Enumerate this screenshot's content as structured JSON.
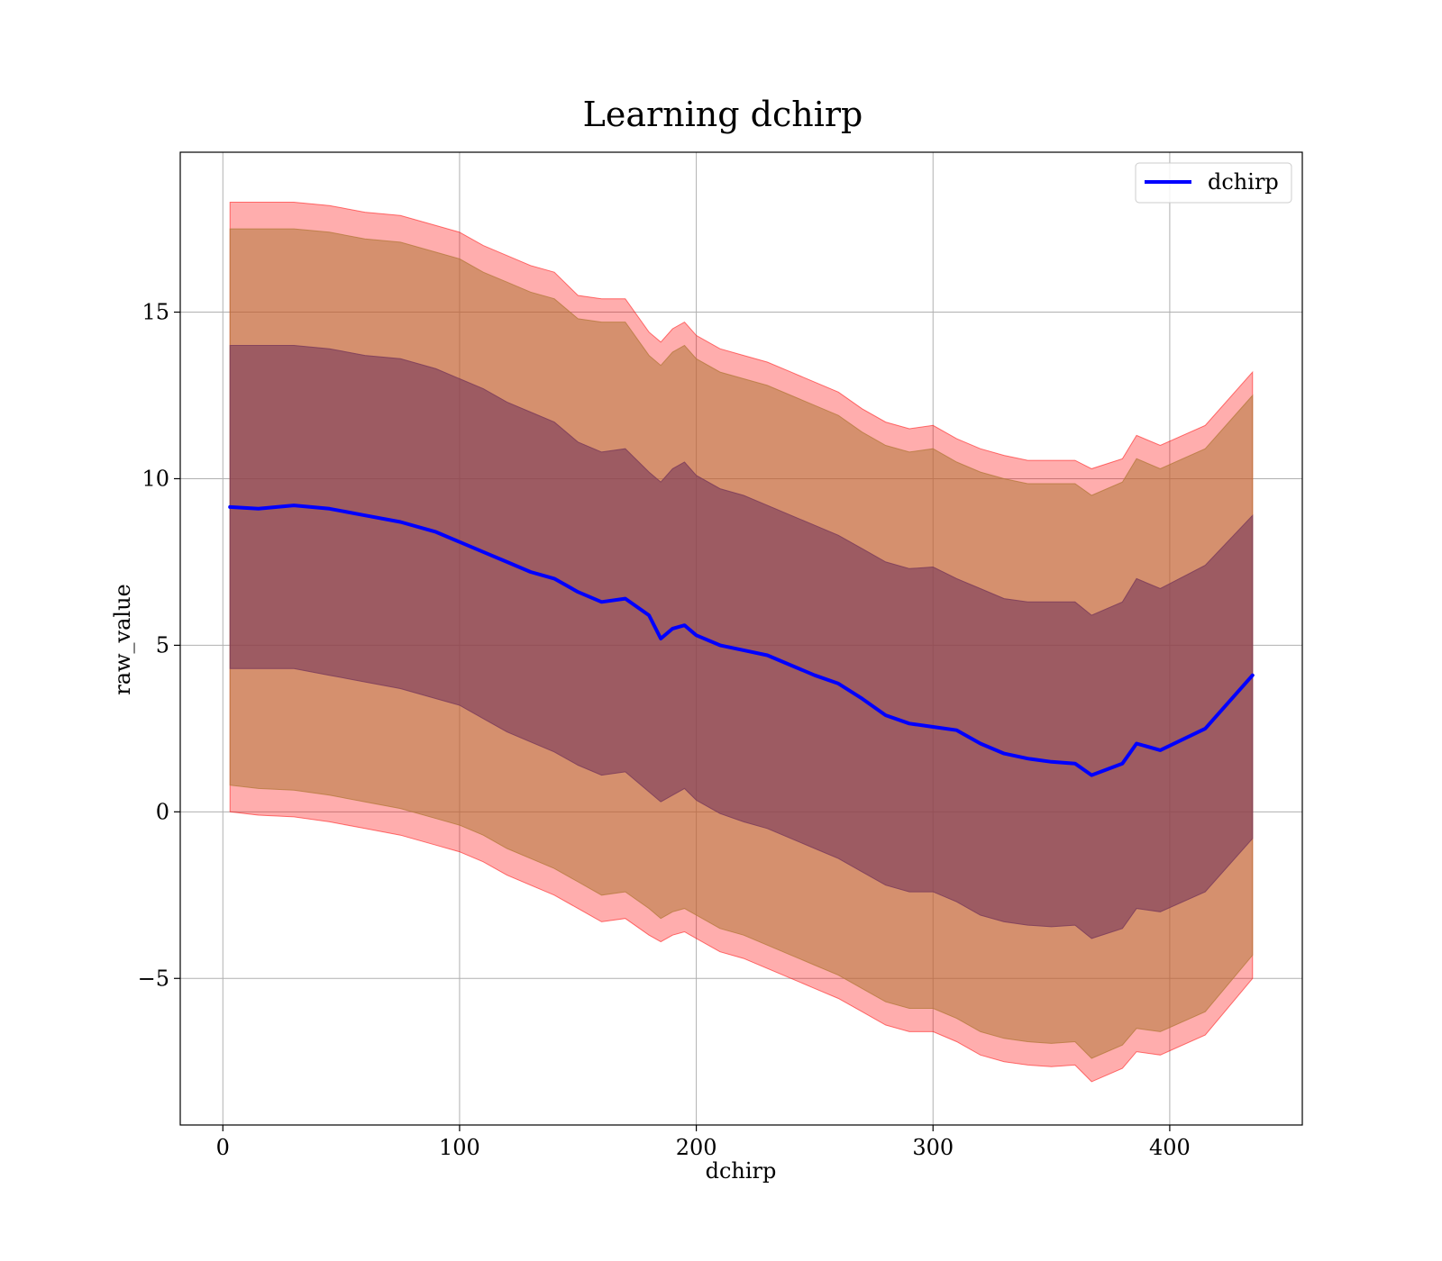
{
  "chart_data": {
    "type": "line",
    "title": "Learning dchirp",
    "xlabel": "dchirp",
    "ylabel": "raw_value",
    "xlim": [
      -18,
      456
    ],
    "ylim": [
      -9.4,
      19.8
    ],
    "xticks": [
      0,
      100,
      200,
      300,
      400
    ],
    "xtick_labels": [
      "0",
      "100",
      "200",
      "300",
      "400"
    ],
    "yticks": [
      -5,
      0,
      5,
      10,
      15
    ],
    "ytick_labels": [
      "−5",
      "0",
      "5",
      "10",
      "15"
    ],
    "grid": true,
    "legend_position": "top-right",
    "series": [
      {
        "name": "dchirp",
        "color": "#0000ff",
        "x": [
          3,
          15,
          30,
          45,
          60,
          75,
          90,
          100,
          110,
          120,
          130,
          140,
          150,
          160,
          170,
          180,
          185,
          190,
          195,
          200,
          210,
          220,
          230,
          240,
          250,
          260,
          270,
          280,
          290,
          300,
          310,
          320,
          330,
          340,
          350,
          360,
          367,
          380,
          386,
          396,
          415,
          435
        ],
        "values": [
          9.15,
          9.1,
          9.2,
          9.1,
          8.9,
          8.7,
          8.4,
          8.1,
          7.8,
          7.5,
          7.2,
          7.0,
          6.6,
          6.3,
          6.4,
          5.9,
          5.2,
          5.5,
          5.6,
          5.3,
          5.0,
          4.85,
          4.7,
          4.4,
          4.1,
          3.85,
          3.4,
          2.9,
          2.65,
          2.55,
          2.45,
          2.05,
          1.75,
          1.6,
          1.5,
          1.45,
          1.1,
          1.45,
          2.05,
          1.85,
          2.5,
          4.1
        ]
      }
    ],
    "bands": [
      {
        "color": "#ff0000",
        "opacity": 0.32,
        "lower": [
          0.0,
          -0.1,
          -0.15,
          -0.3,
          -0.5,
          -0.7,
          -1.0,
          -1.2,
          -1.5,
          -1.9,
          -2.2,
          -2.5,
          -2.9,
          -3.3,
          -3.2,
          -3.7,
          -3.9,
          -3.7,
          -3.6,
          -3.8,
          -4.2,
          -4.4,
          -4.7,
          -5.0,
          -5.3,
          -5.6,
          -6.0,
          -6.4,
          -6.6,
          -6.6,
          -6.9,
          -7.3,
          -7.5,
          -7.6,
          -7.65,
          -7.6,
          -8.1,
          -7.7,
          -7.2,
          -7.3,
          -6.7,
          -5.0
        ],
        "upper": [
          18.3,
          18.3,
          18.3,
          18.2,
          18.0,
          17.9,
          17.6,
          17.4,
          17.0,
          16.7,
          16.4,
          16.2,
          15.5,
          15.4,
          15.4,
          14.4,
          14.1,
          14.5,
          14.7,
          14.3,
          13.9,
          13.7,
          13.5,
          13.2,
          12.9,
          12.6,
          12.1,
          11.7,
          11.5,
          11.6,
          11.2,
          10.9,
          10.7,
          10.55,
          10.55,
          10.55,
          10.3,
          10.6,
          11.3,
          11.0,
          11.6,
          13.2
        ]
      },
      {
        "color": "#b3783a",
        "opacity": 0.55,
        "lower": [
          0.8,
          0.7,
          0.65,
          0.5,
          0.3,
          0.1,
          -0.2,
          -0.4,
          -0.7,
          -1.1,
          -1.4,
          -1.7,
          -2.1,
          -2.5,
          -2.4,
          -2.9,
          -3.2,
          -3.0,
          -2.9,
          -3.1,
          -3.5,
          -3.7,
          -4.0,
          -4.3,
          -4.6,
          -4.9,
          -5.3,
          -5.7,
          -5.9,
          -5.9,
          -6.2,
          -6.6,
          -6.8,
          -6.9,
          -6.95,
          -6.9,
          -7.4,
          -7.0,
          -6.5,
          -6.6,
          -6.0,
          -4.3
        ],
        "upper": [
          17.5,
          17.5,
          17.5,
          17.4,
          17.2,
          17.1,
          16.8,
          16.6,
          16.2,
          15.9,
          15.6,
          15.4,
          14.8,
          14.7,
          14.7,
          13.7,
          13.4,
          13.8,
          14.0,
          13.6,
          13.2,
          13.0,
          12.8,
          12.5,
          12.2,
          11.9,
          11.4,
          11.0,
          10.8,
          10.9,
          10.5,
          10.2,
          10.0,
          9.85,
          9.85,
          9.85,
          9.5,
          9.9,
          10.6,
          10.3,
          10.9,
          12.5
        ]
      },
      {
        "color": "#7a3a5a",
        "opacity": 0.62,
        "lower": [
          4.3,
          4.3,
          4.3,
          4.1,
          3.9,
          3.7,
          3.4,
          3.2,
          2.8,
          2.4,
          2.1,
          1.8,
          1.4,
          1.1,
          1.2,
          0.6,
          0.3,
          0.5,
          0.7,
          0.35,
          -0.05,
          -0.3,
          -0.5,
          -0.8,
          -1.1,
          -1.4,
          -1.8,
          -2.2,
          -2.4,
          -2.4,
          -2.7,
          -3.1,
          -3.3,
          -3.4,
          -3.45,
          -3.4,
          -3.8,
          -3.5,
          -2.9,
          -3.0,
          -2.4,
          -0.8
        ],
        "upper": [
          14.0,
          14.0,
          14.0,
          13.9,
          13.7,
          13.6,
          13.3,
          13.0,
          12.7,
          12.3,
          12.0,
          11.7,
          11.1,
          10.8,
          10.9,
          10.2,
          9.9,
          10.3,
          10.5,
          10.1,
          9.7,
          9.5,
          9.2,
          8.9,
          8.6,
          8.3,
          7.9,
          7.5,
          7.3,
          7.35,
          7.0,
          6.7,
          6.4,
          6.3,
          6.3,
          6.3,
          5.9,
          6.3,
          7.0,
          6.7,
          7.4,
          8.9
        ]
      }
    ]
  }
}
